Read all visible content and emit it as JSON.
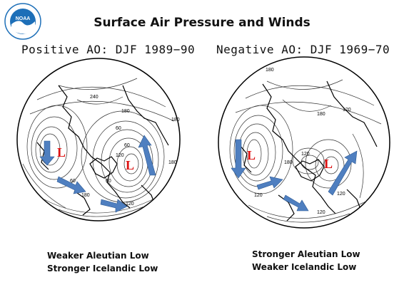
{
  "header": {
    "title": "Surface Air Pressure and Winds",
    "logo_text": "NOAA"
  },
  "panels": [
    {
      "title": "Positive AO: DJF 1989−90",
      "low_labels": [
        "L",
        "L"
      ],
      "contour_labels": [
        "240",
        "180",
        "60",
        "60",
        "120",
        "180",
        "180",
        "60",
        "60",
        "180",
        "120"
      ],
      "caption_lines": [
        "Weaker Aleutian Low",
        "Stronger Icelandic Low"
      ]
    },
    {
      "title": "Negative AO: DJF 1969−70",
      "low_labels": [
        "L",
        "L"
      ],
      "contour_labels": [
        "180",
        "180",
        "120",
        "120",
        "180",
        "120",
        "120",
        "120"
      ],
      "caption_lines": [
        "Stronger Aleutian Low",
        "Weaker Icelandic Low"
      ]
    }
  ],
  "colors": {
    "low_marker": "#dd1111",
    "wind_arrow": "#4f7fc0",
    "logo_blue": "#1d6fb8"
  },
  "icons": [
    "noaa-logo-icon",
    "wind-arrow-icon"
  ]
}
